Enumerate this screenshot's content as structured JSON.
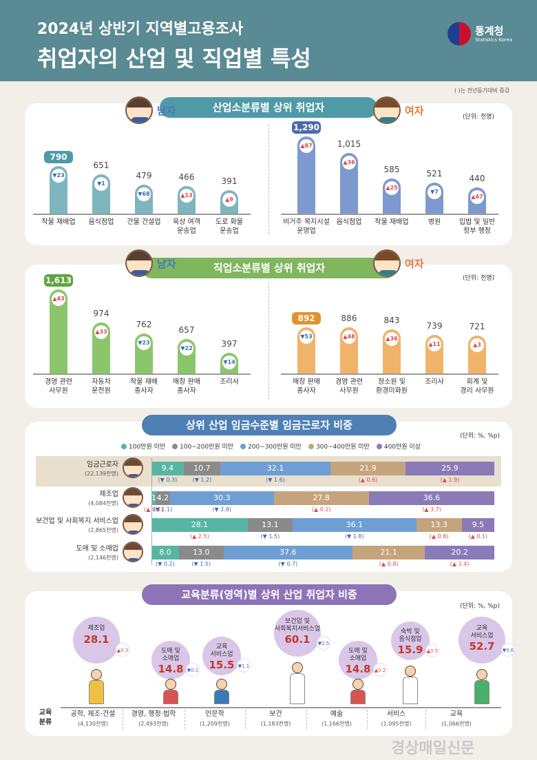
{
  "header": {
    "subtitle": "2024년 상반기 지역별고용조사",
    "title": "취업자의 산업 및 직업별 특성",
    "logo_name": "통계청",
    "logo_en": "Statistics Korea"
  },
  "note": "(   )는 전년동기대비 증감",
  "colors": {
    "header": "#5a8a94",
    "industry": "#7fb5be",
    "industry_f": "#7d99cf",
    "occupation": "#8cc66c",
    "occupation_f": "#f0b36a",
    "seg1": "#57b6a3",
    "seg2": "#8a8a8a",
    "seg3": "#6f9ed3",
    "seg4": "#c5a47d",
    "seg5": "#8a7ab8",
    "up": "#d94c4c",
    "down": "#3c6bb5"
  },
  "section1": {
    "title": "산업소분류별 상위 취업자",
    "unit": "(단위: 천명)"
  },
  "section2": {
    "title": "직업소분류별 상위 취업자",
    "unit": "(단위: 천명)"
  },
  "section3": {
    "title": "상위 산업 임금수준별 임금근로자 비중",
    "unit": "(단위: %, %p)"
  },
  "section4": {
    "title": "교육분류(영역)별 상위 산업 취업자 비중",
    "unit": "(단위: %, %p)"
  },
  "labels": {
    "male": "남자",
    "female": "여자",
    "edu_axis": "교육\n분류",
    "watermark": "경상매일신문"
  },
  "chart_data": [
    {
      "type": "bar",
      "group": "industry-male",
      "categories": [
        "작물 재배업",
        "음식점업",
        "건물 건설업",
        "육상 여객\n운송업",
        "도로 화물\n운송업"
      ],
      "values": [
        790,
        651,
        479,
        466,
        391
      ],
      "changes": [
        -23,
        -1,
        -68,
        13,
        9
      ]
    },
    {
      "type": "bar",
      "group": "industry-female",
      "categories": [
        "비거주 복지시설\n운영업",
        "음식점업",
        "작물 재배업",
        "병원",
        "입법 및 일반\n정부 행정"
      ],
      "values": [
        1290,
        1015,
        585,
        521,
        440
      ],
      "changes": [
        87,
        36,
        25,
        -7,
        47
      ]
    },
    {
      "type": "bar",
      "group": "occupation-male",
      "categories": [
        "경영 관련\n사무원",
        "자동차\n운전원",
        "작물 재배\n종사자",
        "매장 판매\n종사자",
        "조리사"
      ],
      "values": [
        1613,
        974,
        762,
        657,
        397
      ],
      "changes": [
        43,
        33,
        -23,
        -22,
        -14
      ]
    },
    {
      "type": "bar",
      "group": "occupation-female",
      "categories": [
        "매장 판매\n종사자",
        "경영 관련\n사무원",
        "청소원 및\n환경미화원",
        "조리사",
        "회계 및\n경리 사무원"
      ],
      "values": [
        892,
        886,
        843,
        739,
        721
      ],
      "changes": [
        -53,
        48,
        36,
        11,
        3
      ]
    },
    {
      "type": "bar",
      "group": "wage-share",
      "legend": [
        "100만원 미만",
        "100~200만원 미만",
        "200~300만원 미만",
        "300~400만원 미만",
        "400만원 이상"
      ],
      "rows": [
        {
          "name": "임금근로자",
          "total": "(22,139천명)",
          "values": [
            9.4,
            10.7,
            32.1,
            21.9,
            25.9
          ],
          "changes": [
            -0.3,
            -1.2,
            -1.6,
            0.6,
            1.9
          ]
        },
        {
          "name": "제조업",
          "total": "(4,084천명)",
          "values": [
            1.2,
            4.2,
            30.3,
            27.8,
            36.6
          ],
          "changes": [
            0.1,
            -1.1,
            -2.8,
            0.2,
            3.7
          ]
        },
        {
          "name": "보건업 및 사회복지 서비스업",
          "total": "(2,865천명)",
          "values": [
            28.1,
            13.1,
            36.1,
            13.3,
            9.5
          ],
          "changes": [
            2.5,
            -1.5,
            -1.8,
            0.8,
            0.1
          ]
        },
        {
          "name": "도매 및 소매업",
          "total": "(2,146천명)",
          "values": [
            8.0,
            13.0,
            37.6,
            21.1,
            20.2
          ],
          "changes": [
            -0.2,
            -1.5,
            -0.7,
            0.8,
            1.4
          ]
        }
      ]
    },
    {
      "type": "bar",
      "group": "education-top-industry",
      "items": [
        {
          "edu": "공학, 제조·건설",
          "total": "(4,130천명)",
          "industry": "제조업",
          "value": 28.1,
          "change": 0.3
        },
        {
          "edu": "경영, 행정·법학",
          "total": "(2,493천명)",
          "industry": "도매 및\n소매업",
          "value": 14.8,
          "change": -0.1
        },
        {
          "edu": "인문학",
          "total": "(1,209천명)",
          "industry": "교육\n서비스업",
          "value": 15.5,
          "change": -1.1
        },
        {
          "edu": "보건",
          "total": "(1,183천명)",
          "industry": "보건업 및\n사회복지서비스업",
          "value": 60.1,
          "change": -2.5
        },
        {
          "edu": "예술",
          "total": "(1,166천명)",
          "industry": "도매 및\n소매업",
          "value": 14.8,
          "change": 0.2
        },
        {
          "edu": "서비스",
          "total": "(1,095천명)",
          "industry": "숙박 및\n음식점업",
          "value": 15.9,
          "change": 0.5
        },
        {
          "edu": "교육",
          "total": "(1,066천명)",
          "industry": "교육\n서비스업",
          "value": 52.7,
          "change": -0.6
        }
      ]
    }
  ]
}
